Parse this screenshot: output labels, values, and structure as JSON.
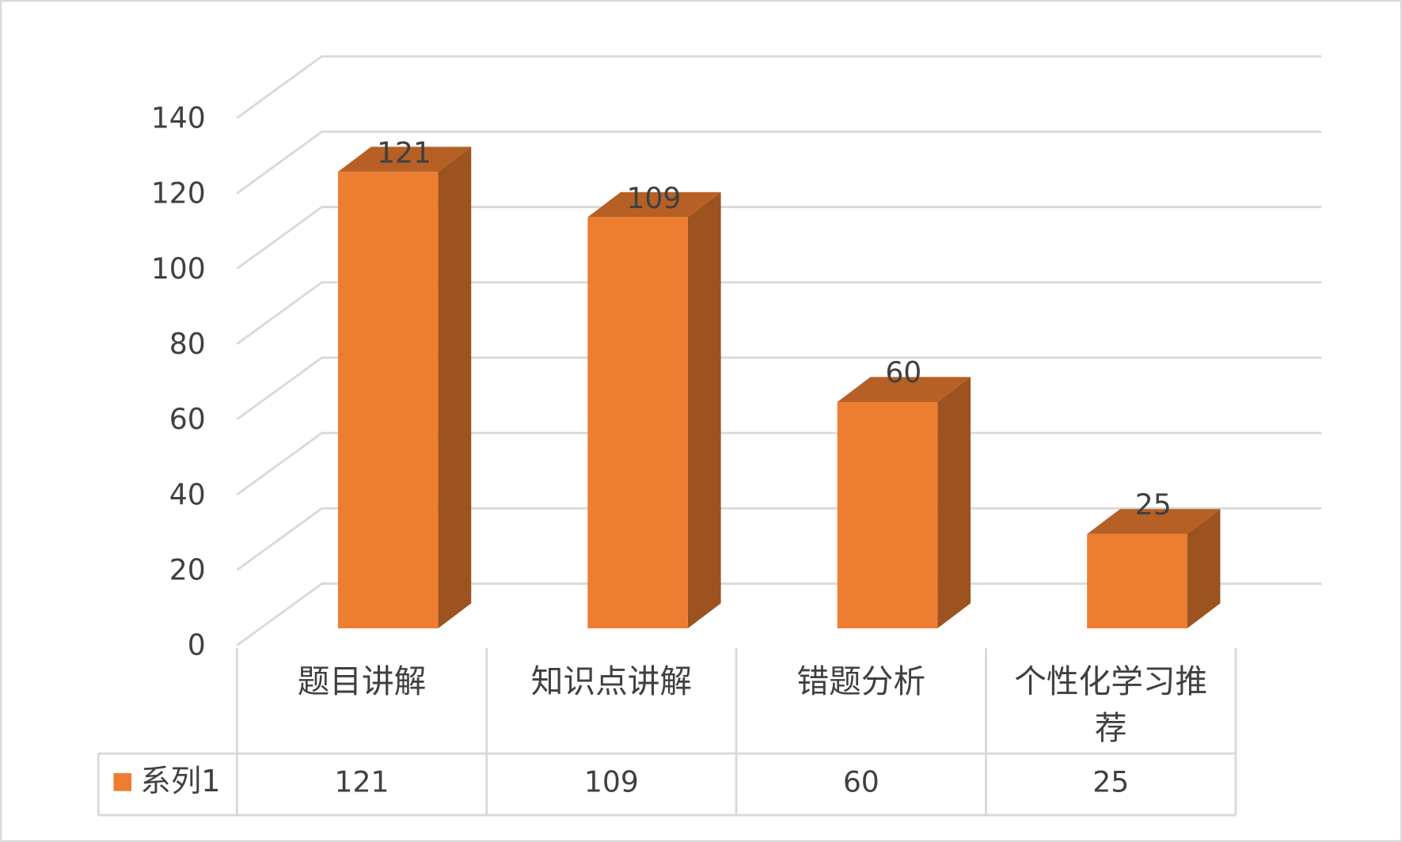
{
  "chart_data": {
    "type": "bar3d",
    "categories": [
      "题目讲解",
      "知识点讲解",
      "错题分析",
      "个性化学习推荐"
    ],
    "series": [
      {
        "name": "系列1",
        "color": "#ed7d31",
        "values": [
          121,
          109,
          60,
          25
        ]
      }
    ],
    "ylim": [
      0,
      140
    ],
    "yticks": [
      0,
      20,
      40,
      60,
      80,
      100,
      120,
      140
    ],
    "grid": true,
    "data_labels": true,
    "data_table": true
  }
}
